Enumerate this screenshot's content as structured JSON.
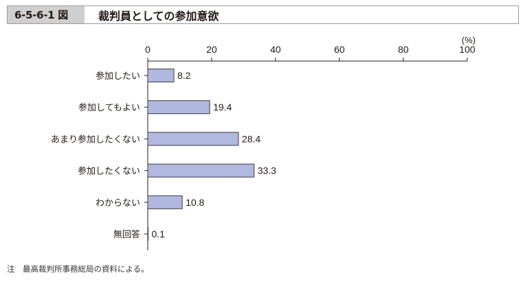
{
  "header": {
    "fig_number": "6-5-6-1 図",
    "title": "裁判員としての参加意欲"
  },
  "footnote": "注　最高裁判所事務総局の資料による。",
  "chart_data": {
    "type": "bar",
    "orientation": "horizontal",
    "unit_label": "(%)",
    "xlim": [
      0,
      100
    ],
    "ticks": [
      0,
      20,
      40,
      60,
      80,
      100
    ],
    "categories": [
      "参加したい",
      "参加してもよい",
      "あまり参加したくない",
      "参加したくない",
      "わからない",
      "無回答"
    ],
    "values": [
      8.2,
      19.4,
      28.4,
      33.3,
      10.8,
      0.1
    ],
    "value_labels": [
      "8.2",
      "19.4",
      "28.4",
      "33.3",
      "10.8",
      "0.1"
    ],
    "bar_color": "#b0b8e0",
    "bar_stroke": "#3a3a3a",
    "axis_position": "top",
    "grid": false
  }
}
